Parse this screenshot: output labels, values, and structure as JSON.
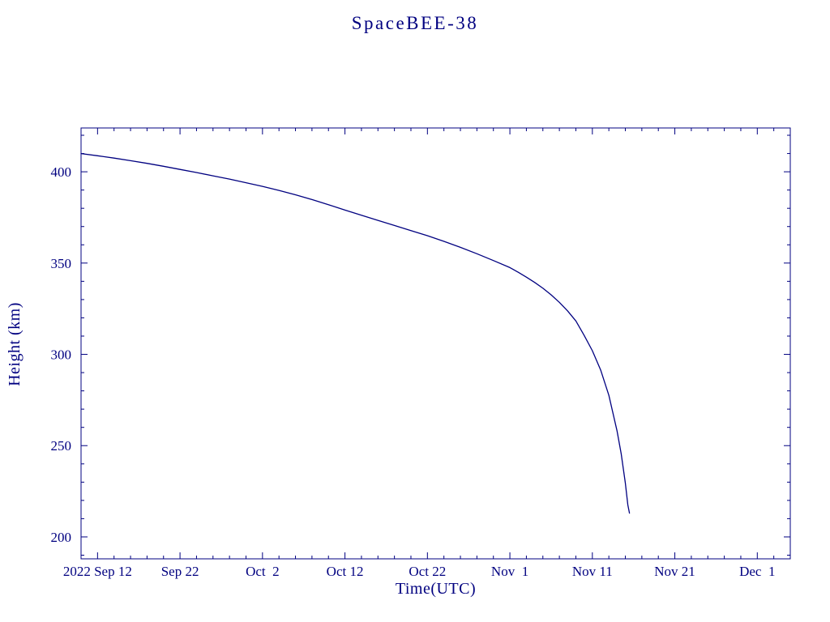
{
  "page": {
    "background": "#ffffff",
    "accent_color": "#000080"
  },
  "chart_data": {
    "type": "line",
    "title": "SpaceBEE-38",
    "xlabel": "Time(UTC)",
    "ylabel": "Height (km)",
    "grid": false,
    "legend": "none",
    "line_color": "#000080",
    "x_axis": {
      "unit": "date",
      "epoch": "2022 Sep 10 = day 0",
      "domain_days": [
        0,
        86
      ],
      "minor_tick_step_days": 2,
      "major_ticks": [
        {
          "day": 2,
          "label": "2022 Sep 12"
        },
        {
          "day": 12,
          "label": "Sep 22"
        },
        {
          "day": 22,
          "label": "Oct  2"
        },
        {
          "day": 32,
          "label": "Oct 12"
        },
        {
          "day": 42,
          "label": "Oct 22"
        },
        {
          "day": 52,
          "label": "Nov  1"
        },
        {
          "day": 62,
          "label": "Nov 11"
        },
        {
          "day": 72,
          "label": "Nov 21"
        },
        {
          "day": 82,
          "label": "Dec  1"
        }
      ]
    },
    "y_axis": {
      "domain_km": [
        188,
        424
      ],
      "minor_tick_step_km": 10,
      "major_ticks": [
        200,
        250,
        300,
        350,
        400
      ]
    },
    "series": [
      {
        "name": "orbital-height-km",
        "points_day_km": [
          [
            0,
            410.0
          ],
          [
            2,
            408.8
          ],
          [
            4,
            407.5
          ],
          [
            6,
            406.1
          ],
          [
            8,
            404.6
          ],
          [
            10,
            403.0
          ],
          [
            12,
            401.3
          ],
          [
            14,
            399.6
          ],
          [
            16,
            397.8
          ],
          [
            18,
            396.0
          ],
          [
            20,
            394.0
          ],
          [
            22,
            392.0
          ],
          [
            24,
            389.8
          ],
          [
            26,
            387.4
          ],
          [
            28,
            384.8
          ],
          [
            30,
            382.0
          ],
          [
            32,
            379.0
          ],
          [
            34,
            376.2
          ],
          [
            36,
            373.4
          ],
          [
            38,
            370.6
          ],
          [
            40,
            367.8
          ],
          [
            42,
            365.0
          ],
          [
            44,
            361.9
          ],
          [
            46,
            358.6
          ],
          [
            48,
            355.1
          ],
          [
            50,
            351.4
          ],
          [
            52,
            347.5
          ],
          [
            53,
            345.0
          ],
          [
            54,
            342.3
          ],
          [
            55,
            339.4
          ],
          [
            56,
            336.2
          ],
          [
            57,
            332.6
          ],
          [
            58,
            328.5
          ],
          [
            59,
            323.8
          ],
          [
            60,
            318.3
          ],
          [
            61,
            310.5
          ],
          [
            62,
            302.0
          ],
          [
            63,
            291.5
          ],
          [
            64,
            277.5
          ],
          [
            65,
            258.0
          ],
          [
            65.5,
            245.5
          ],
          [
            66,
            229.5
          ],
          [
            66.3,
            217.5
          ],
          [
            66.5,
            213.0
          ]
        ]
      }
    ]
  }
}
